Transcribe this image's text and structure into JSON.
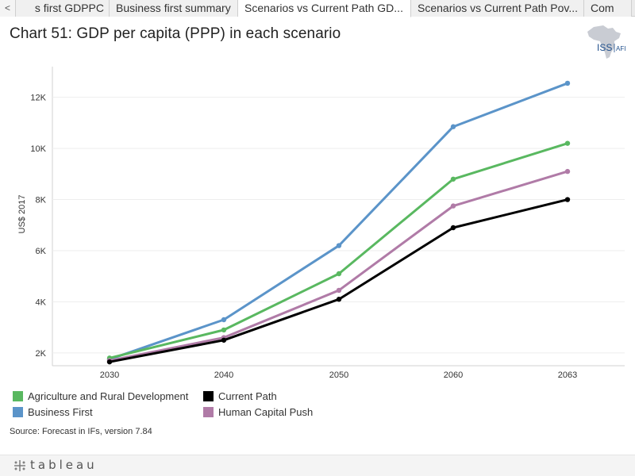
{
  "tabs": {
    "prev_label": "<",
    "items": [
      {
        "label": "s first GDPPC",
        "active": false
      },
      {
        "label": "Business first summary",
        "active": false
      },
      {
        "label": "Scenarios vs Current Path GD...",
        "active": true
      },
      {
        "label": "Scenarios vs Current Path Pov...",
        "active": false
      },
      {
        "label": "Com",
        "active": false
      }
    ]
  },
  "logo": {
    "text_iss": "ISS",
    "text_afi": "AFI"
  },
  "source": "Source: Forecast in IFs, version 7.84",
  "footer": {
    "brand": "tableau"
  },
  "chart_data": {
    "type": "line",
    "title": "Chart 51: GDP per capita (PPP) in each scenario",
    "xlabel": "",
    "ylabel": "US$ 2017",
    "x": [
      "2030",
      "2040",
      "2050",
      "2060",
      "2063"
    ],
    "ylim": [
      1500,
      13200
    ],
    "yticks": [
      2000,
      4000,
      6000,
      8000,
      10000,
      12000
    ],
    "ytick_labels": [
      "2K",
      "4K",
      "6K",
      "8K",
      "10K",
      "12K"
    ],
    "grid": true,
    "legend_placement": "bottom",
    "series": [
      {
        "name": "Agriculture and Rural Development",
        "color": "#59b860",
        "values": [
          1800,
          2900,
          5100,
          8800,
          10200
        ]
      },
      {
        "name": "Business First",
        "color": "#5b94c9",
        "values": [
          1750,
          3300,
          6200,
          10850,
          12550
        ]
      },
      {
        "name": "Current Path",
        "color": "#000000",
        "values": [
          1650,
          2500,
          4100,
          6900,
          8000
        ]
      },
      {
        "name": "Human Capital Push",
        "color": "#b07ba7",
        "values": [
          1700,
          2600,
          4450,
          7750,
          9100
        ]
      }
    ],
    "legend_order": [
      "Agriculture and Rural Development",
      "Current Path",
      "Business First",
      "Human Capital Push"
    ]
  }
}
